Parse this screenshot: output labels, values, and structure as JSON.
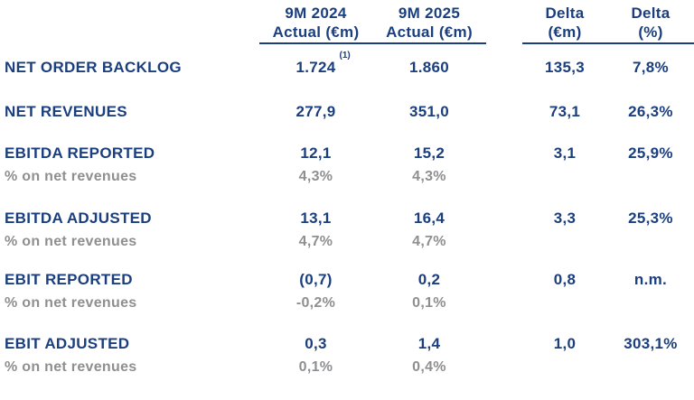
{
  "theme": {
    "navy": "#1b3f7e",
    "gray": "#8f8f92",
    "background": "#ffffff"
  },
  "table": {
    "columns": [
      {
        "id": "9m-2024-actual",
        "line1": "9M 2024",
        "line2": "Actual (€m)"
      },
      {
        "id": "9m-2025-actual",
        "line1": "9M 2025",
        "line2": "Actual (€m)"
      },
      {
        "id": "delta-eur",
        "line1": "Delta",
        "line2": "(€m)"
      },
      {
        "id": "delta-pct",
        "line1": "Delta",
        "line2": "(%)"
      }
    ],
    "rows": [
      {
        "label": "NET ORDER BACKLOG",
        "v2024": "1.724",
        "footnote": "(1)",
        "v2025": "1.860",
        "delta_eur": "135,3",
        "delta_pct": "7,8%"
      },
      {
        "label": "NET REVENUES",
        "v2024": "277,9",
        "v2025": "351,0",
        "delta_eur": "73,1",
        "delta_pct": "26,3%"
      },
      {
        "label": "EBITDA REPORTED",
        "v2024": "12,1",
        "v2025": "15,2",
        "delta_eur": "3,1",
        "delta_pct": "25,9%",
        "sub": {
          "label": "% on net revenues",
          "v2024": "4,3%",
          "v2025": "4,3%"
        }
      },
      {
        "label": "EBITDA ADJUSTED",
        "v2024": "13,1",
        "v2025": "16,4",
        "delta_eur": "3,3",
        "delta_pct": "25,3%",
        "sub": {
          "label": "% on net revenues",
          "v2024": "4,7%",
          "v2025": "4,7%"
        }
      },
      {
        "label": "EBIT REPORTED",
        "v2024": "(0,7)",
        "v2025": "0,2",
        "delta_eur": "0,8",
        "delta_pct": "n.m.",
        "sub": {
          "label": "% on net revenues",
          "v2024": "-0,2%",
          "v2025": "0,1%"
        }
      },
      {
        "label": "EBIT ADJUSTED",
        "v2024": "0,3",
        "v2025": "1,4",
        "delta_eur": "1,0",
        "delta_pct": "303,1%",
        "sub": {
          "label": "% on net revenues",
          "v2024": "0,1%",
          "v2025": "0,4%"
        }
      }
    ]
  }
}
